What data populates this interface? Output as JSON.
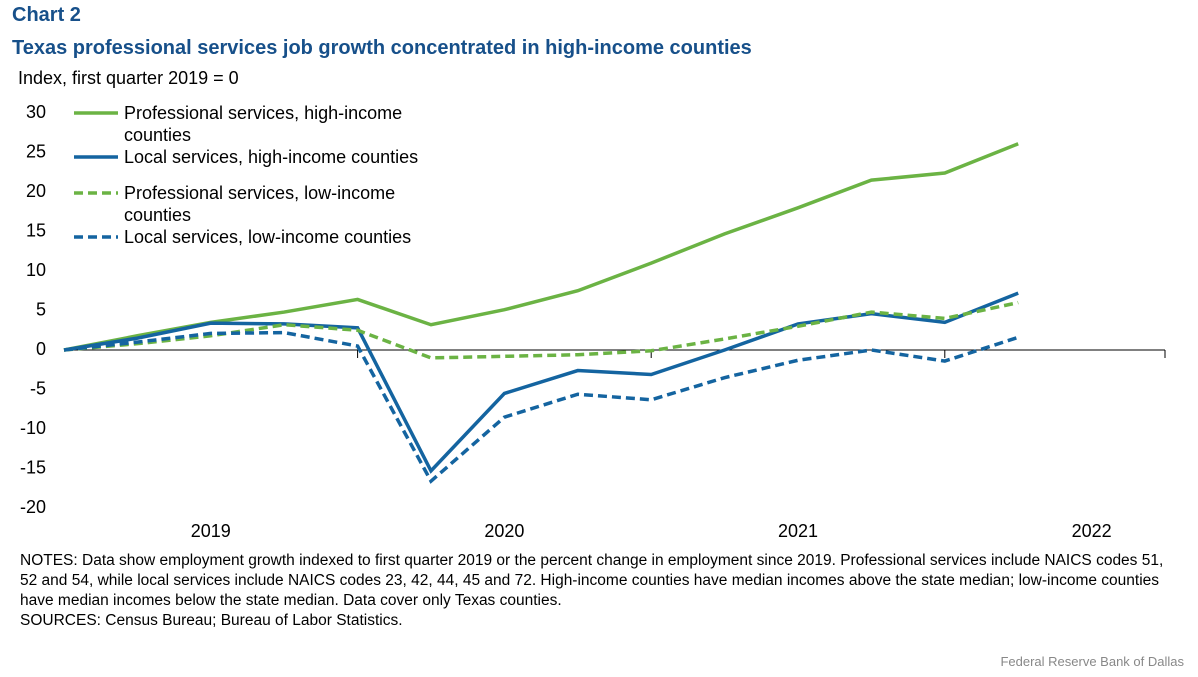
{
  "chart_data": {
    "type": "line",
    "label": "Chart 2",
    "title": "Texas professional services job growth concentrated in high-income counties",
    "ylabel": "Index, first quarter 2019 = 0",
    "x": [
      2019,
      2019.25,
      2019.5,
      2019.75,
      2020,
      2020.25,
      2020.5,
      2020.75,
      2021,
      2021.25,
      2021.5,
      2021.75,
      2022,
      2022.25
    ],
    "xlim": [
      2019,
      2022.75
    ],
    "xticks": [
      2019,
      2020,
      2021,
      2022
    ],
    "ylim": [
      -20,
      30
    ],
    "yticks": [
      -20,
      -15,
      -10,
      -5,
      0,
      5,
      10,
      15,
      20,
      25,
      30
    ],
    "series": [
      {
        "name": "Professional services, high-income counties",
        "color": "#6bb344",
        "dash": false,
        "values": [
          0,
          1.8,
          3.5,
          4.8,
          6.4,
          3.2,
          5.1,
          7.5,
          11,
          14.7,
          18,
          21.5,
          22.4,
          26.1
        ]
      },
      {
        "name": "Local services, high-income counties",
        "color": "#1464a0",
        "dash": false,
        "values": [
          0,
          1.5,
          3.4,
          3.3,
          2.8,
          -15.3,
          -5.5,
          -2.6,
          -3.1,
          0,
          3.3,
          4.6,
          3.5,
          7.2
        ]
      },
      {
        "name": "Professional services, low-income counties",
        "color": "#6bb344",
        "dash": true,
        "values": [
          0,
          0.8,
          1.8,
          3.2,
          2.5,
          -1,
          -0.8,
          -0.6,
          -0.1,
          1.4,
          3,
          4.8,
          4,
          6
        ]
      },
      {
        "name": "Local services, low-income counties",
        "color": "#1464a0",
        "dash": true,
        "values": [
          0,
          1,
          2.1,
          2.2,
          0.5,
          -16.6,
          -8.5,
          -5.6,
          -6.3,
          -3.5,
          -1.3,
          0,
          -1.4,
          1.6
        ]
      }
    ],
    "notes": "NOTES: Data show employment growth indexed to first quarter 2019 or the percent change in employment since 2019. Professional services include NAICS codes 51, 52 and 54, while local services include NAICS codes 23, 42, 44, 45 and 72. High-income counties have median incomes above the state median; low-income counties have median incomes below the state median. Data cover only Texas counties.",
    "sources": "SOURCES: Census Bureau; Bureau of Labor Statistics.",
    "credit": "Federal Reserve Bank of Dallas"
  }
}
